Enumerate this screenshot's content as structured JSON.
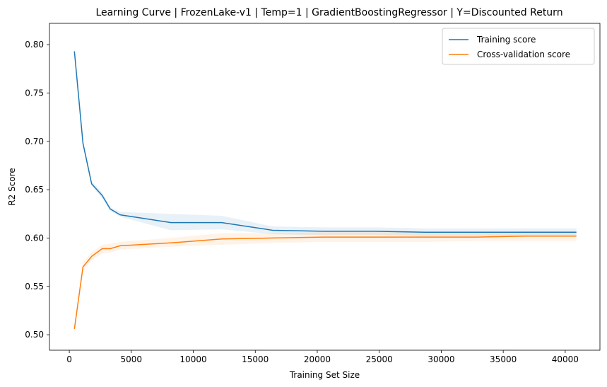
{
  "chart_data": {
    "type": "line",
    "title": "Learning Curve | FrozenLake-v1 | Temp=1 | GradientBoostingRegressor | Y=Discounted Return",
    "xlabel": "Training Set Size",
    "ylabel": "R2 Score",
    "xlim": [
      -1600,
      42800
    ],
    "ylim": [
      0.484,
      0.822
    ],
    "xticks": [
      0,
      5000,
      10000,
      15000,
      20000,
      25000,
      30000,
      35000,
      40000
    ],
    "yticks": [
      0.5,
      0.55,
      0.6,
      0.65,
      0.7,
      0.75,
      0.8
    ],
    "ytick_labels": [
      "0.50",
      "0.55",
      "0.60",
      "0.65",
      "0.70",
      "0.75",
      "0.80"
    ],
    "legend_position": "top-right",
    "grid": false,
    "series": [
      {
        "name": "Training score",
        "color": "#1f77b4",
        "x": [
          410,
          1100,
          1800,
          2650,
          3300,
          4100,
          8200,
          12300,
          16400,
          20500,
          24600,
          28700,
          32800,
          36900,
          40900
        ],
        "y": [
          0.793,
          0.698,
          0.656,
          0.644,
          0.63,
          0.624,
          0.616,
          0.616,
          0.608,
          0.607,
          0.607,
          0.606,
          0.606,
          0.606,
          0.606
        ],
        "band_low": [
          0.789,
          0.695,
          0.654,
          0.641,
          0.628,
          0.622,
          0.608,
          0.609,
          0.604,
          0.603,
          0.603,
          0.602,
          0.602,
          0.602,
          0.602
        ],
        "band_high": [
          0.797,
          0.702,
          0.659,
          0.647,
          0.632,
          0.627,
          0.625,
          0.623,
          0.612,
          0.611,
          0.611,
          0.61,
          0.61,
          0.61,
          0.61
        ]
      },
      {
        "name": "Cross-validation score",
        "color": "#ff7f0e",
        "x": [
          410,
          1100,
          1800,
          2650,
          3300,
          4100,
          8200,
          12300,
          16400,
          20500,
          24600,
          28700,
          32800,
          36900,
          40900
        ],
        "y": [
          0.506,
          0.57,
          0.581,
          0.589,
          0.589,
          0.592,
          0.595,
          0.599,
          0.6,
          0.601,
          0.601,
          0.601,
          0.601,
          0.602,
          0.602
        ],
        "band_low": [
          0.504,
          0.566,
          0.577,
          0.584,
          0.585,
          0.588,
          0.591,
          0.593,
          0.595,
          0.596,
          0.596,
          0.596,
          0.597,
          0.597,
          0.597
        ],
        "band_high": [
          0.508,
          0.575,
          0.585,
          0.593,
          0.594,
          0.596,
          0.6,
          0.605,
          0.605,
          0.606,
          0.606,
          0.606,
          0.606,
          0.607,
          0.607
        ]
      }
    ]
  }
}
